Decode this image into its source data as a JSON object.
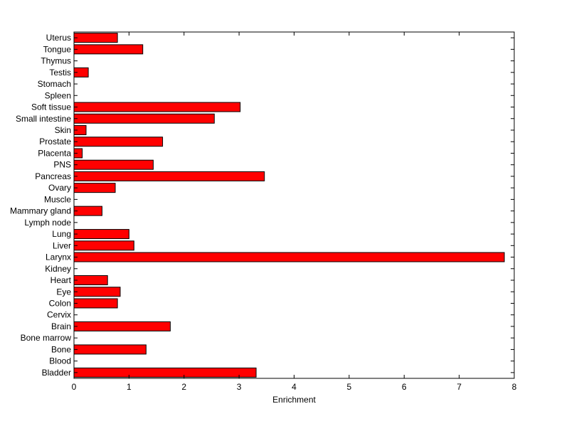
{
  "chart_data": {
    "type": "bar",
    "orientation": "horizontal",
    "title": "",
    "xlabel": "Enrichment",
    "ylabel": "",
    "xlim": [
      0,
      8
    ],
    "x_ticks": [
      0,
      1,
      2,
      3,
      4,
      5,
      6,
      7,
      8
    ],
    "grid": false,
    "legend": "none",
    "bar_color": "#ff0000",
    "bar_edge_color": "#000000",
    "categories": [
      "Bladder",
      "Blood",
      "Bone",
      "Bone marrow",
      "Brain",
      "Cervix",
      "Colon",
      "Eye",
      "Heart",
      "Kidney",
      "Larynx",
      "Liver",
      "Lung",
      "Lymph node",
      "Mammary gland",
      "Muscle",
      "Ovary",
      "Pancreas",
      "PNS",
      "Placenta",
      "Prostate",
      "Skin",
      "Small intestine",
      "Soft tissue",
      "Spleen",
      "Stomach",
      "Testis",
      "Thymus",
      "Tongue",
      "Uterus"
    ],
    "values": [
      3.31,
      0,
      1.31,
      0,
      1.75,
      0,
      0.79,
      0.84,
      0.61,
      0,
      7.82,
      1.09,
      1.0,
      0,
      0.51,
      0,
      0.75,
      3.46,
      1.44,
      0.15,
      1.61,
      0.22,
      2.55,
      3.02,
      0,
      0,
      0.26,
      0,
      1.25,
      0.79
    ]
  }
}
